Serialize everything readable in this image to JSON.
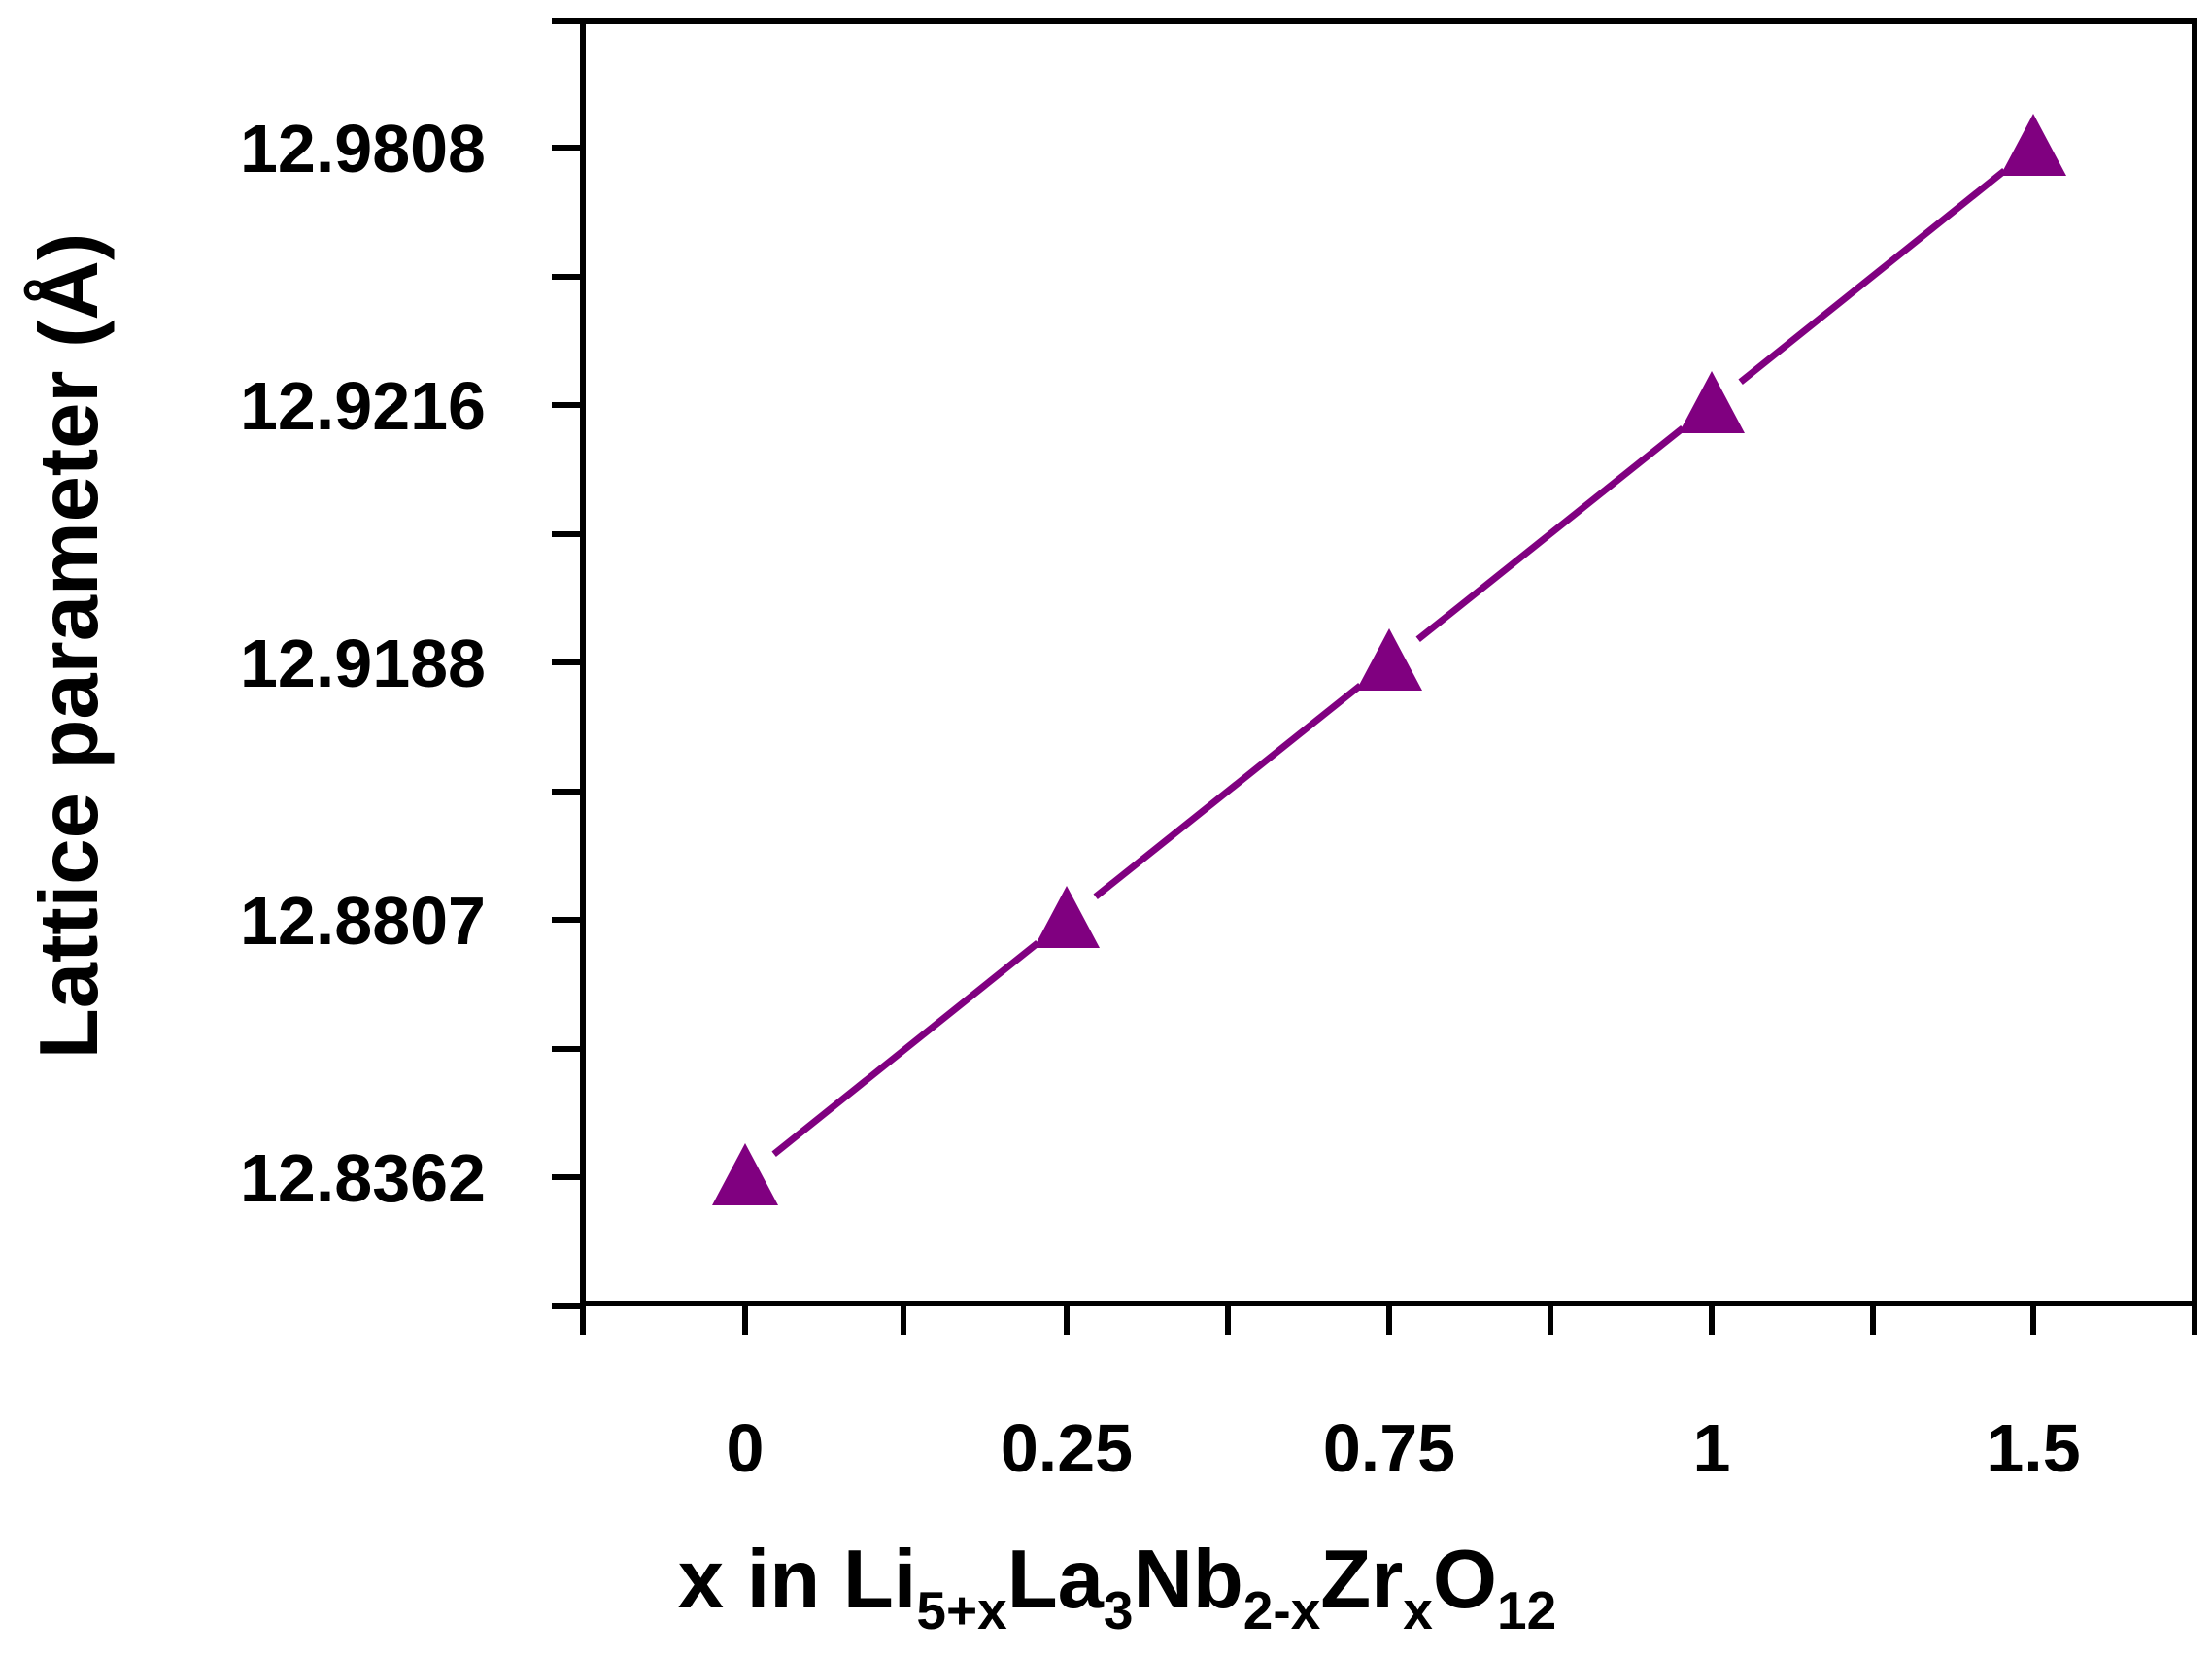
{
  "chart_data": {
    "type": "line",
    "title": "",
    "xlabel": {
      "parts": [
        {
          "text": "x  in  Li",
          "sub": false
        },
        {
          "text": "5+x",
          "sub": true
        },
        {
          "text": "La",
          "sub": false
        },
        {
          "text": "3",
          "sub": true
        },
        {
          "text": "Nb",
          "sub": false
        },
        {
          "text": "2-x",
          "sub": true
        },
        {
          "text": "Zr",
          "sub": false
        },
        {
          "text": "x",
          "sub": true
        },
        {
          "text": "O",
          "sub": false
        },
        {
          "text": "12",
          "sub": true
        }
      ]
    },
    "ylabel": "Lattice parameter (Å)",
    "categories": [
      "0",
      "0.25",
      "0.75",
      "1",
      "1.5"
    ],
    "ytick_labels": [
      "12.8362",
      "12.8807",
      "12.9188",
      "12.9216",
      "12.9808"
    ],
    "series": [
      {
        "marker": "triangle",
        "color": "#800080",
        "values": [
          12.8362,
          12.8807,
          12.9188,
          12.9216,
          12.9808
        ]
      }
    ],
    "grid": false,
    "legend": "none"
  }
}
